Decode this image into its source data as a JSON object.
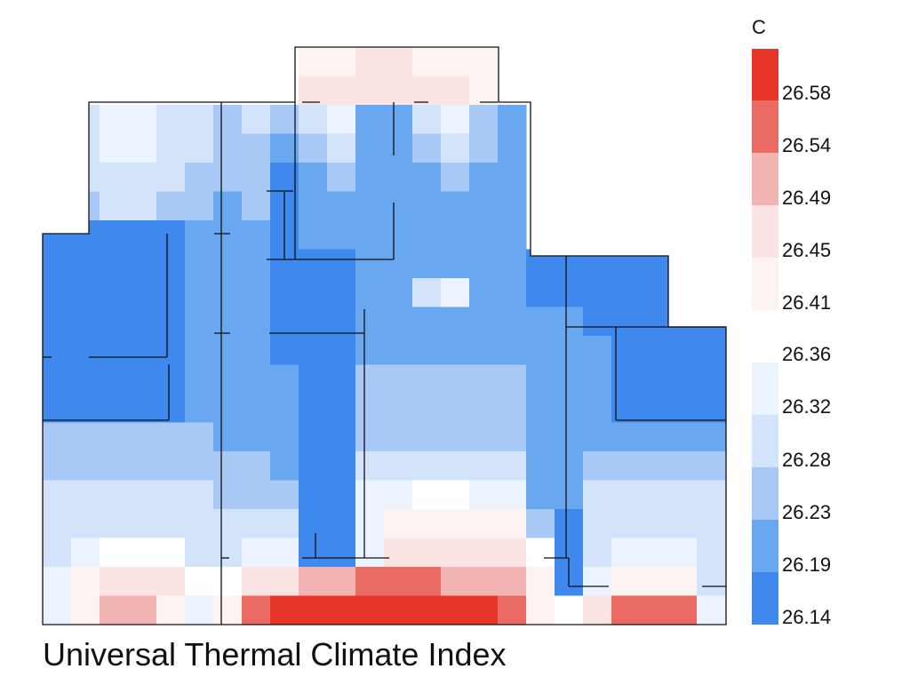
{
  "chart_data": {
    "type": "heatmap",
    "title": "Universal Thermal Climate Index",
    "colorbar": {
      "unit": "C",
      "bins": [
        {
          "label": "26.58",
          "color": "#e8352a"
        },
        {
          "label": "26.54",
          "color": "#ea6b64"
        },
        {
          "label": "26.49",
          "color": "#f2b5b3"
        },
        {
          "label": "26.45",
          "color": "#fae5e4"
        },
        {
          "label": "26.41",
          "color": "#fdf3f1"
        },
        {
          "label": "26.36",
          "color": "#ebf3fe"
        },
        {
          "label": "26.32",
          "color": "#d3e3fa"
        },
        {
          "label": "26.28",
          "color": "#a8c8f5"
        },
        {
          "label": "26.23",
          "color": "#6aa7f1"
        },
        {
          "label": "26.19",
          "color": "#3e88ee"
        },
        {
          "label": "26.14",
          "color": "#3e88ee"
        }
      ]
    },
    "grid_values": [
      [
        null,
        null,
        null,
        null,
        null,
        null,
        null,
        null,
        null,
        26.43,
        26.43,
        26.45,
        26.47,
        26.43,
        26.43,
        26.41,
        null,
        null,
        null,
        null,
        null,
        null,
        null,
        null
      ],
      [
        null,
        null,
        null,
        null,
        null,
        null,
        null,
        null,
        null,
        26.45,
        26.47,
        26.45,
        26.45,
        26.45,
        26.45,
        26.43,
        null,
        null,
        null,
        null,
        null,
        null,
        null,
        null
      ],
      [
        null,
        26.3,
        26.34,
        26.36,
        26.3,
        26.3,
        26.25,
        26.3,
        26.25,
        26.3,
        26.34,
        26.21,
        26.21,
        26.3,
        26.34,
        26.25,
        26.21,
        null,
        null,
        null,
        null,
        null,
        null,
        null
      ],
      [
        null,
        26.32,
        26.36,
        26.36,
        26.32,
        26.3,
        26.25,
        26.28,
        26.23,
        26.25,
        26.3,
        26.23,
        26.21,
        26.25,
        26.3,
        26.25,
        26.23,
        null,
        null,
        null,
        null,
        null,
        null,
        null
      ],
      [
        null,
        26.3,
        26.32,
        26.32,
        26.3,
        26.28,
        26.25,
        26.25,
        26.19,
        26.23,
        26.25,
        26.23,
        26.21,
        26.23,
        26.25,
        26.23,
        26.23,
        null,
        null,
        null,
        null,
        null,
        null,
        null
      ],
      [
        null,
        26.28,
        26.3,
        26.3,
        26.28,
        26.25,
        26.23,
        26.25,
        26.16,
        26.23,
        26.23,
        26.23,
        26.23,
        26.23,
        26.23,
        26.23,
        26.23,
        null,
        null,
        null,
        null,
        null,
        null,
        null
      ],
      [
        26.16,
        26.16,
        26.16,
        26.16,
        26.19,
        26.21,
        26.21,
        26.23,
        26.19,
        26.23,
        26.23,
        26.23,
        26.23,
        26.23,
        26.23,
        26.23,
        26.23,
        null,
        null,
        null,
        null,
        null,
        null,
        null
      ],
      [
        26.16,
        26.16,
        26.16,
        26.16,
        26.19,
        26.21,
        26.21,
        26.23,
        26.16,
        26.16,
        26.16,
        26.21,
        26.23,
        26.23,
        26.23,
        26.23,
        26.23,
        26.19,
        26.19,
        26.19,
        26.19,
        26.19,
        null,
        null
      ],
      [
        26.16,
        26.16,
        26.16,
        26.16,
        26.19,
        26.21,
        26.21,
        26.23,
        26.16,
        26.16,
        26.16,
        26.23,
        26.23,
        26.32,
        26.34,
        26.23,
        26.23,
        26.19,
        26.19,
        26.19,
        26.19,
        26.19,
        null,
        null
      ],
      [
        26.16,
        26.16,
        26.16,
        26.16,
        26.19,
        26.21,
        26.21,
        26.23,
        26.16,
        26.16,
        26.16,
        26.23,
        26.23,
        26.23,
        26.23,
        26.23,
        26.23,
        26.21,
        26.21,
        26.19,
        26.19,
        26.19,
        26.16,
        26.16
      ],
      [
        26.19,
        26.19,
        26.19,
        26.19,
        26.19,
        26.21,
        26.21,
        26.21,
        26.19,
        26.19,
        26.19,
        26.23,
        26.23,
        26.23,
        26.23,
        26.23,
        26.23,
        26.21,
        26.21,
        26.21,
        26.16,
        26.16,
        26.16,
        26.16
      ],
      [
        26.19,
        26.16,
        26.16,
        26.16,
        26.16,
        26.21,
        26.21,
        26.21,
        26.21,
        26.19,
        26.19,
        26.25,
        26.25,
        26.25,
        26.25,
        26.25,
        26.25,
        26.21,
        26.21,
        26.21,
        26.16,
        26.16,
        26.16,
        26.16
      ],
      [
        26.19,
        26.16,
        26.16,
        26.16,
        26.16,
        26.21,
        26.21,
        26.21,
        26.21,
        26.19,
        26.19,
        26.25,
        26.25,
        26.25,
        26.25,
        26.25,
        26.25,
        26.21,
        26.21,
        26.21,
        26.16,
        26.16,
        26.16,
        26.16
      ],
      [
        26.25,
        26.25,
        26.25,
        26.25,
        26.25,
        26.25,
        26.23,
        26.23,
        26.23,
        26.19,
        26.19,
        26.28,
        26.28,
        26.28,
        26.28,
        26.28,
        26.28,
        26.21,
        26.21,
        26.23,
        26.23,
        26.23,
        26.23,
        26.23
      ],
      [
        26.28,
        26.28,
        26.28,
        26.28,
        26.28,
        26.28,
        26.25,
        26.25,
        26.23,
        26.19,
        26.19,
        26.3,
        26.32,
        26.32,
        26.32,
        26.3,
        26.3,
        26.21,
        26.21,
        26.28,
        26.28,
        26.28,
        26.28,
        26.28
      ],
      [
        26.3,
        26.3,
        26.3,
        26.3,
        26.3,
        26.3,
        26.28,
        26.28,
        26.28,
        26.19,
        26.19,
        26.34,
        26.36,
        26.38,
        26.38,
        26.36,
        26.34,
        26.23,
        26.21,
        26.3,
        26.3,
        26.3,
        26.3,
        26.3
      ],
      [
        26.32,
        26.32,
        26.32,
        26.32,
        26.32,
        26.32,
        26.3,
        26.3,
        26.3,
        26.16,
        26.16,
        26.36,
        26.41,
        26.43,
        26.43,
        26.41,
        26.41,
        26.25,
        26.19,
        26.32,
        26.32,
        26.32,
        26.32,
        26.32
      ],
      [
        26.3,
        26.34,
        26.38,
        26.38,
        26.38,
        26.32,
        26.3,
        26.36,
        26.36,
        26.16,
        26.16,
        26.34,
        26.45,
        26.45,
        26.47,
        26.45,
        26.45,
        26.38,
        26.19,
        26.3,
        26.36,
        26.36,
        26.36,
        26.3
      ],
      [
        26.34,
        26.41,
        26.45,
        26.45,
        26.45,
        26.38,
        26.38,
        26.45,
        26.47,
        26.51,
        26.51,
        26.56,
        26.56,
        26.56,
        26.51,
        26.51,
        26.51,
        26.43,
        26.19,
        26.36,
        26.43,
        26.43,
        26.43,
        26.3
      ],
      [
        26.34,
        26.43,
        26.51,
        26.51,
        26.43,
        26.36,
        26.41,
        26.56,
        26.6,
        26.6,
        26.6,
        26.6,
        26.6,
        26.6,
        26.6,
        26.6,
        26.56,
        26.43,
        26.38,
        26.45,
        26.56,
        26.56,
        26.56,
        26.36
      ]
    ]
  }
}
